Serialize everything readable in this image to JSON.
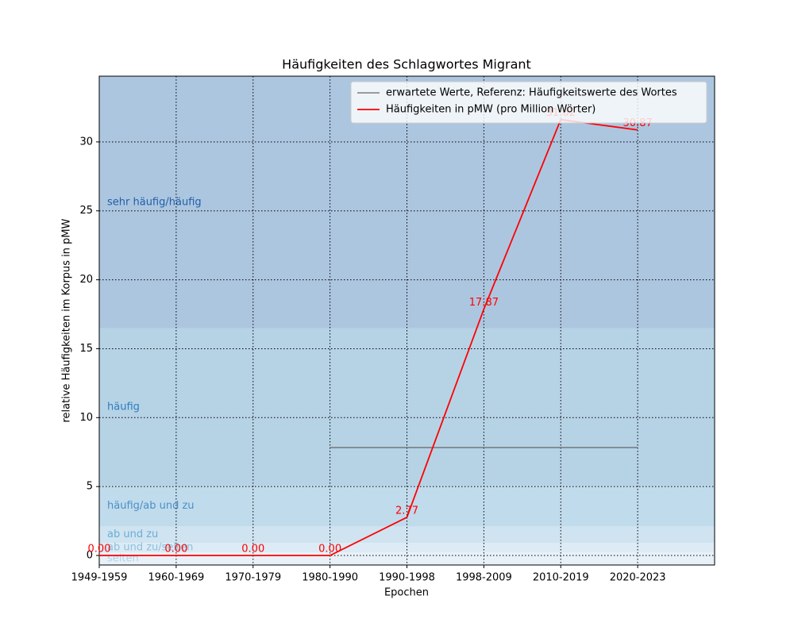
{
  "chart_data": {
    "type": "line",
    "title": "Häufigkeiten des Schlagwortes Migrant",
    "xlabel": "Epochen",
    "ylabel": "relative Häufigkeiten im Korpus in pMW",
    "categories": [
      "1949-1959",
      "1960-1969",
      "1970-1979",
      "1980-1990",
      "1990-1998",
      "1998-2009",
      "2010-2019",
      "2020-2023"
    ],
    "series": [
      {
        "name": "erwartete Werte, Referenz: Häufigkeitswerte des Wortes",
        "color": "#666666",
        "values": [
          null,
          null,
          null,
          7.83,
          7.83,
          7.83,
          7.83,
          7.83
        ]
      },
      {
        "name": "Häufigkeiten in pMW (pro Million Wörter)",
        "color": "#ff0000",
        "values": [
          0,
          0,
          0,
          0,
          2.77,
          17.87,
          31.62,
          30.87
        ],
        "value_labels": [
          "0.00",
          "0.00",
          "0.00",
          "0.00",
          "2.77",
          "17.87",
          "31.62",
          "30.87"
        ]
      }
    ],
    "bands": [
      {
        "label": "sehr häufig/häufig",
        "range": [
          16.47,
          34.77
        ],
        "color": "#adc6e0",
        "text_color": "#1f5fa8"
      },
      {
        "label": "häufig",
        "range": [
          5.07,
          16.47
        ],
        "color": "#b6d3e6",
        "text_color": "#2f7bbf"
      },
      {
        "label": "häufig/ab und zu",
        "range": [
          2.13,
          5.07
        ],
        "color": "#c0dbec",
        "text_color": "#4a90c8"
      },
      {
        "label": "ab und zu",
        "range": [
          0.92,
          2.13
        ],
        "color": "#cfe3f0",
        "text_color": "#6aaed6"
      },
      {
        "label": "ab und zu/selten",
        "range": [
          0.23,
          0.92
        ],
        "color": "#dcebf5",
        "text_color": "#8cc0dd"
      },
      {
        "label": "selten",
        "range": [
          -0.69,
          0.23
        ],
        "color": "#e8f1f8",
        "text_color": "#b0d2e8"
      }
    ],
    "ylim": [
      -0.69,
      34.77
    ],
    "yticks": [
      0,
      5,
      10,
      15,
      20,
      25,
      30
    ],
    "grid": true,
    "legend": "upper right"
  }
}
